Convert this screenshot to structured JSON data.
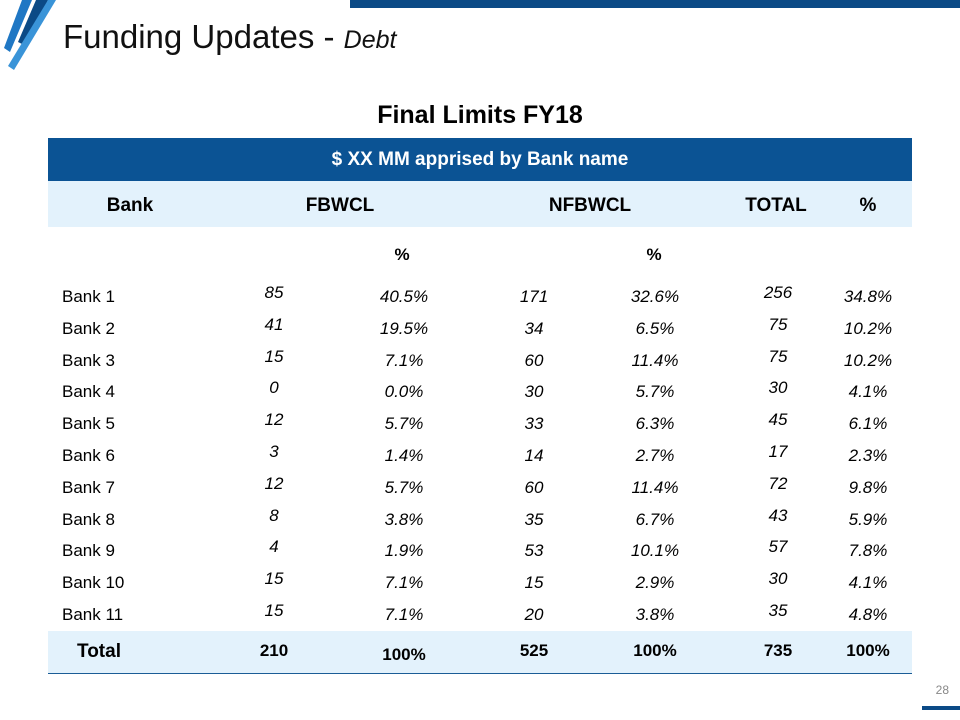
{
  "slide": {
    "title": "Funding Updates - ",
    "title_sub": "Debt",
    "heading": "Final Limits FY18",
    "page_number": "28"
  },
  "table": {
    "band_label": "$ XX MM apprised by Bank name",
    "headers": {
      "bank": "Bank",
      "fbwcl": "FBWCL",
      "nfbwcl": "NFBWCL",
      "total": "TOTAL",
      "pct": "%"
    },
    "subheaders": {
      "fb_pct": "%",
      "nfb_pct": "%"
    },
    "rows": [
      {
        "bank": "Bank 1",
        "fb": "85",
        "fb_pct": "40.5%",
        "nfb": "171",
        "nfb_pct": "32.6%",
        "total": "256",
        "pct": "34.8%"
      },
      {
        "bank": "Bank 2",
        "fb": "41",
        "fb_pct": "19.5%",
        "nfb": "34",
        "nfb_pct": "6.5%",
        "total": "75",
        "pct": "10.2%"
      },
      {
        "bank": "Bank 3",
        "fb": "15",
        "fb_pct": "7.1%",
        "nfb": "60",
        "nfb_pct": "11.4%",
        "total": "75",
        "pct": "10.2%"
      },
      {
        "bank": "Bank 4",
        "fb": "0",
        "fb_pct": "0.0%",
        "nfb": "30",
        "nfb_pct": "5.7%",
        "total": "30",
        "pct": "4.1%"
      },
      {
        "bank": "Bank 5",
        "fb": "12",
        "fb_pct": "5.7%",
        "nfb": "33",
        "nfb_pct": "6.3%",
        "total": "45",
        "pct": "6.1%"
      },
      {
        "bank": "Bank 6",
        "fb": "3",
        "fb_pct": "1.4%",
        "nfb": "14",
        "nfb_pct": "2.7%",
        "total": "17",
        "pct": "2.3%"
      },
      {
        "bank": "Bank 7",
        "fb": "12",
        "fb_pct": "5.7%",
        "nfb": "60",
        "nfb_pct": "11.4%",
        "total": "72",
        "pct": "9.8%"
      },
      {
        "bank": "Bank 8",
        "fb": "8",
        "fb_pct": "3.8%",
        "nfb": "35",
        "nfb_pct": "6.7%",
        "total": "43",
        "pct": "5.9%"
      },
      {
        "bank": "Bank 9",
        "fb": "4",
        "fb_pct": "1.9%",
        "nfb": "53",
        "nfb_pct": "10.1%",
        "total": "57",
        "pct": "7.8%"
      },
      {
        "bank": "Bank 10",
        "fb": "15",
        "fb_pct": "7.1%",
        "nfb": "15",
        "nfb_pct": "2.9%",
        "total": "30",
        "pct": "4.1%"
      },
      {
        "bank": "Bank 11",
        "fb": "15",
        "fb_pct": "7.1%",
        "nfb": "20",
        "nfb_pct": "3.8%",
        "total": "35",
        "pct": "4.8%"
      }
    ],
    "total_row": {
      "bank": "Total",
      "fb": "210",
      "fb_pct": "100%",
      "nfb": "525",
      "nfb_pct": "100%",
      "total": "735",
      "pct": "100%"
    }
  },
  "colors": {
    "accent": "#0b5394",
    "header_bg": "#e3f2fc"
  }
}
